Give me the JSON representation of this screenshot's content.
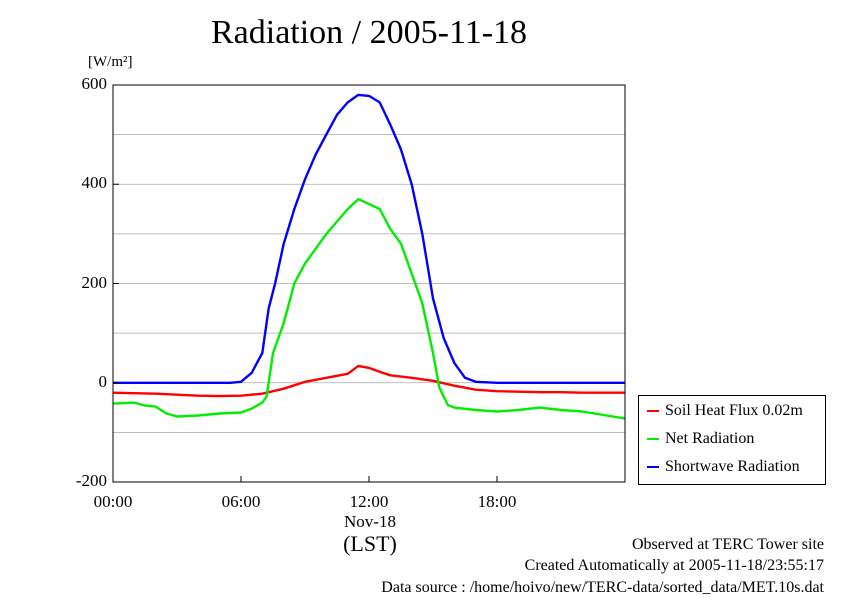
{
  "title": "Radiation / 2005-11-18",
  "unit_label": "[W/m²]",
  "xlabel": "(LST)",
  "x_sublabel": "Nov-18",
  "footer": {
    "line1": "Observed at TERC Tower site",
    "line2": "Created Automatically at 2005-11-18/23:55:17",
    "line3": "Data source : /home/hoivo/new/TERC-data/sorted_data/MET.10s.dat"
  },
  "colors": {
    "soil": "#ff0000",
    "net": "#00ee00",
    "shortwave": "#0000ff",
    "grid": "#aaaaaa"
  },
  "chart_data": {
    "type": "line",
    "title": "Radiation / 2005-11-18",
    "ylabel": "[W/m²]",
    "xlabel": "(LST)",
    "xlim": [
      0,
      24
    ],
    "ylim": [
      -200,
      600
    ],
    "yticks": [
      -200,
      0,
      200,
      400,
      600
    ],
    "ytick_labels": [
      "-200",
      "0",
      "200",
      "400",
      "600"
    ],
    "xticks": [
      0,
      6,
      12,
      18
    ],
    "xtick_labels": [
      "00:00",
      "06:00",
      "12:00",
      "18:00"
    ],
    "grid": "horizontal",
    "legend_position": "outside-right",
    "series": [
      {
        "name": "Soil Heat Flux 0.02m",
        "color": "#ff0000",
        "x": [
          0,
          1,
          2,
          3,
          4,
          5,
          6,
          7,
          8,
          9,
          10,
          11,
          11.5,
          12,
          12.5,
          13,
          14,
          15,
          16,
          17,
          18,
          19,
          20,
          21,
          22,
          23,
          24
        ],
        "y": [
          -20,
          -21,
          -22,
          -24,
          -26,
          -27,
          -26,
          -22,
          -12,
          2,
          10,
          18,
          34,
          30,
          22,
          15,
          10,
          4,
          -6,
          -14,
          -17,
          -18,
          -19,
          -19,
          -20,
          -20,
          -20
        ]
      },
      {
        "name": "Net Radiation",
        "color": "#00ee00",
        "x": [
          0,
          1,
          1.5,
          2,
          2.5,
          3,
          4,
          5,
          6,
          6.5,
          7,
          7.2,
          7.5,
          8,
          8.5,
          9,
          10,
          11,
          11.5,
          12,
          12.5,
          13,
          13.5,
          14,
          14.5,
          15,
          15.3,
          15.7,
          16,
          17,
          18,
          19,
          20,
          21,
          22,
          23,
          24
        ],
        "y": [
          -42,
          -40,
          -46,
          -48,
          -62,
          -68,
          -66,
          -62,
          -60,
          -52,
          -40,
          -28,
          60,
          120,
          200,
          240,
          300,
          350,
          370,
          360,
          350,
          310,
          280,
          220,
          160,
          60,
          -10,
          -45,
          -50,
          -55,
          -58,
          -55,
          -50,
          -55,
          -58,
          -65,
          -72
        ]
      },
      {
        "name": "Shortwave Radiation",
        "color": "#0000ff",
        "x": [
          0,
          1,
          2,
          3,
          4,
          5,
          5.5,
          6,
          6.5,
          7,
          7.3,
          7.6,
          8,
          8.5,
          9,
          9.5,
          10,
          10.5,
          11,
          11.5,
          12,
          12.5,
          13,
          13.5,
          14,
          14.5,
          15,
          15.5,
          16,
          16.5,
          17,
          18,
          19,
          20,
          21,
          22,
          23,
          24
        ],
        "y": [
          0,
          0,
          0,
          0,
          0,
          0,
          0,
          2,
          20,
          60,
          150,
          200,
          280,
          350,
          410,
          460,
          500,
          540,
          565,
          580,
          578,
          565,
          520,
          470,
          400,
          300,
          170,
          90,
          40,
          10,
          2,
          0,
          0,
          0,
          0,
          0,
          0,
          0
        ]
      }
    ]
  }
}
